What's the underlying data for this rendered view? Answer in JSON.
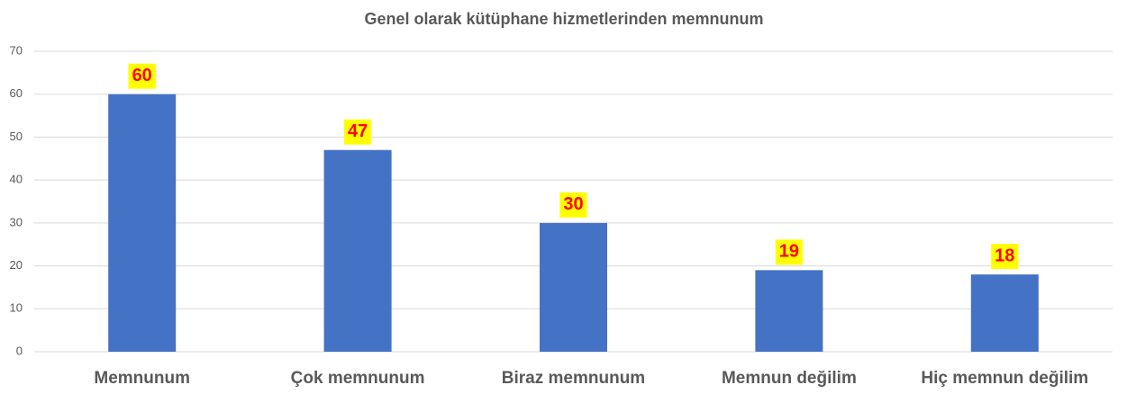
{
  "chart_data": {
    "type": "bar",
    "title": "Genel olarak kütüphane hizmetlerinden memnunum",
    "categories": [
      "Memnunum",
      "Çok memnunum",
      "Biraz memnunum",
      "Memnun değilim",
      "Hiç memnun değilim"
    ],
    "values": [
      60,
      47,
      30,
      19,
      18
    ],
    "color": "#4472c4",
    "label_color": "#ff0000",
    "label_background": "#ffff00",
    "ylim": [
      0,
      70
    ],
    "yticks": [
      0,
      10,
      20,
      30,
      40,
      50,
      60,
      70
    ],
    "grid": true
  }
}
